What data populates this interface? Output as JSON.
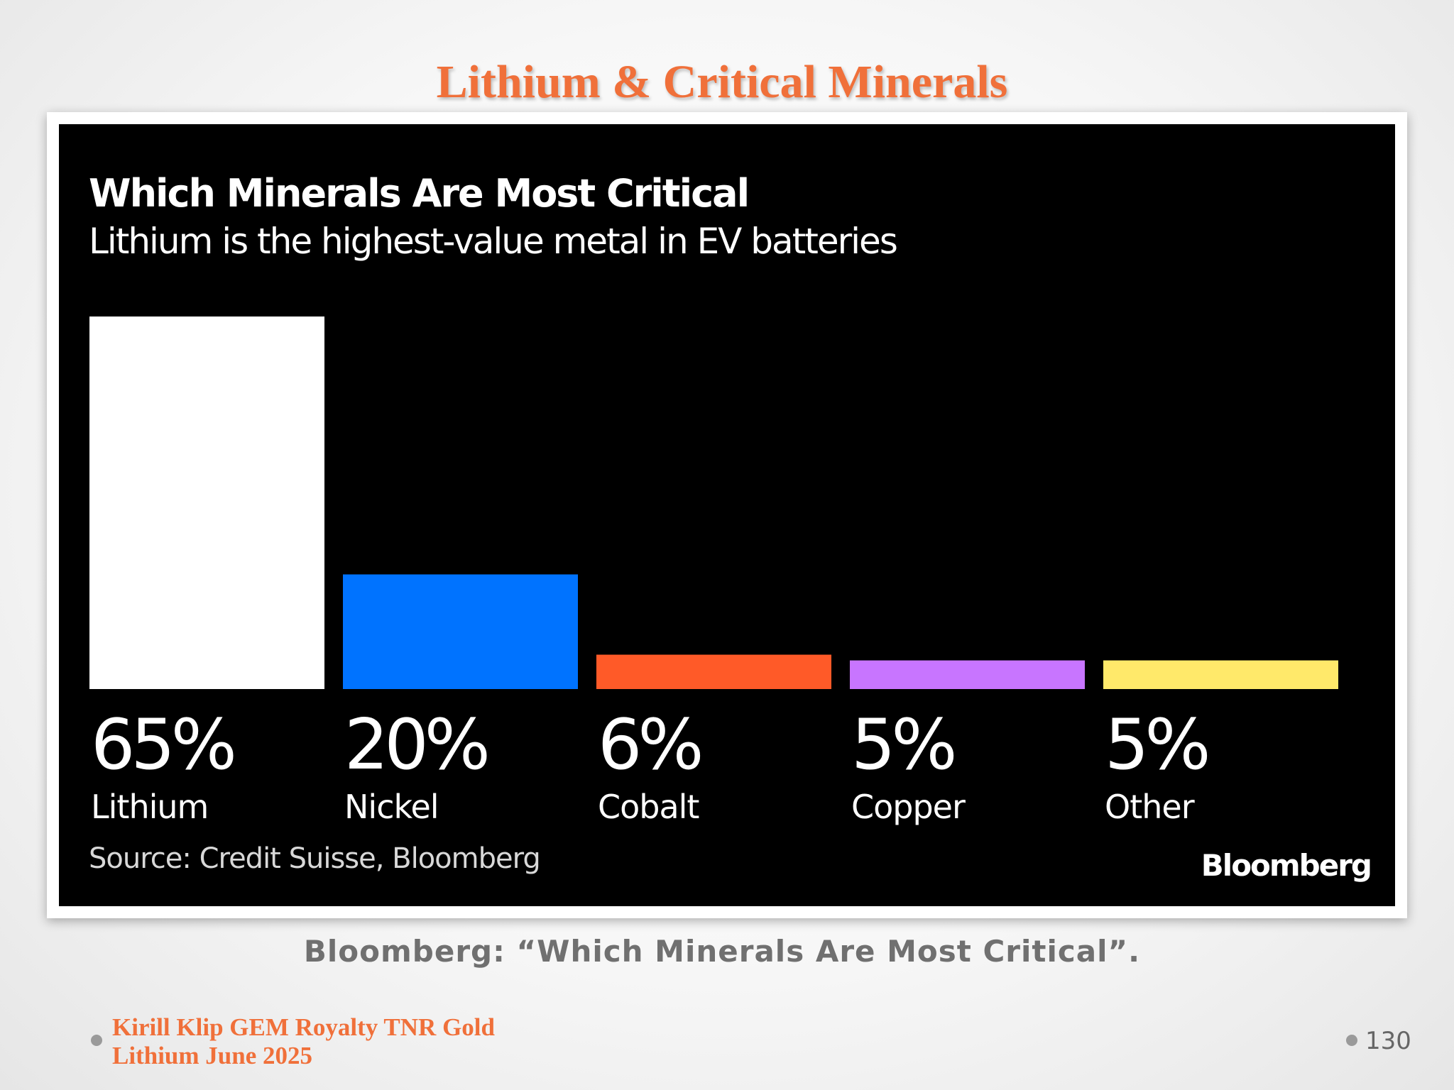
{
  "slide": {
    "title": "Lithium & Critical Minerals",
    "caption": "Bloomberg: “Which Minerals Are Most Critical”.",
    "footer_line1": "Kirill Klip GEM Royalty TNR Gold",
    "footer_line2": "Lithium June 2025",
    "page_number": "130",
    "colors": {
      "title": "#f0703a",
      "caption": "#707070"
    }
  },
  "chart_data": {
    "type": "bar",
    "title": "Which Minerals Are Most Critical",
    "subtitle": "Lithium is the highest-value metal in EV batteries",
    "categories": [
      "Lithium",
      "Nickel",
      "Cobalt",
      "Copper",
      "Other"
    ],
    "values": [
      65,
      20,
      6,
      5,
      5
    ],
    "value_labels": [
      "65%",
      "20%",
      "6%",
      "5%",
      "5%"
    ],
    "colors": [
      "#ffffff",
      "#0073ff",
      "#ff5a28",
      "#c875ff",
      "#ffe96a"
    ],
    "ylim": [
      0,
      65
    ],
    "grid": false,
    "background": "#000000",
    "source": "Source: Credit Suisse, Bloomberg",
    "logo": "Bloomberg"
  }
}
